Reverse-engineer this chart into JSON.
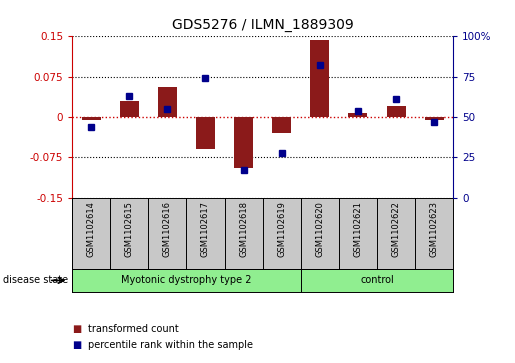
{
  "title": "GDS5276 / ILMN_1889309",
  "samples": [
    "GSM1102614",
    "GSM1102615",
    "GSM1102616",
    "GSM1102617",
    "GSM1102618",
    "GSM1102619",
    "GSM1102620",
    "GSM1102621",
    "GSM1102622",
    "GSM1102623"
  ],
  "red_values": [
    -0.005,
    0.03,
    0.055,
    -0.06,
    -0.095,
    -0.03,
    0.143,
    0.008,
    0.02,
    -0.005
  ],
  "blue_values_pct": [
    44,
    63,
    55,
    74,
    17,
    28,
    82,
    54,
    61,
    47
  ],
  "ylim": [
    -0.15,
    0.15
  ],
  "yticks_left": [
    -0.15,
    -0.075,
    0,
    0.075,
    0.15
  ],
  "yticks_left_labels": [
    "-0.15",
    "-0.075",
    "0",
    "0.075",
    "0.15"
  ],
  "yticks_right": [
    0,
    25,
    50,
    75,
    100
  ],
  "yticks_right_labels": [
    "0",
    "25",
    "50",
    "75",
    "100%"
  ],
  "groups": [
    {
      "label": "Myotonic dystrophy type 2",
      "start": 0,
      "end": 6,
      "color": "#90EE90"
    },
    {
      "label": "control",
      "start": 6,
      "end": 10,
      "color": "#90EE90"
    }
  ],
  "disease_state_label": "disease state",
  "legend_items": [
    {
      "label": "transformed count",
      "color": "#8B1A1A"
    },
    {
      "label": "percentile rank within the sample",
      "color": "#00008B"
    }
  ],
  "bar_color": "#8B1A1A",
  "dot_color": "#00008B",
  "zero_line_color": "#CC0000",
  "grid_color": "#000000",
  "background_color": "#FFFFFF",
  "label_area_color": "#C8C8C8",
  "bar_width": 0.5
}
